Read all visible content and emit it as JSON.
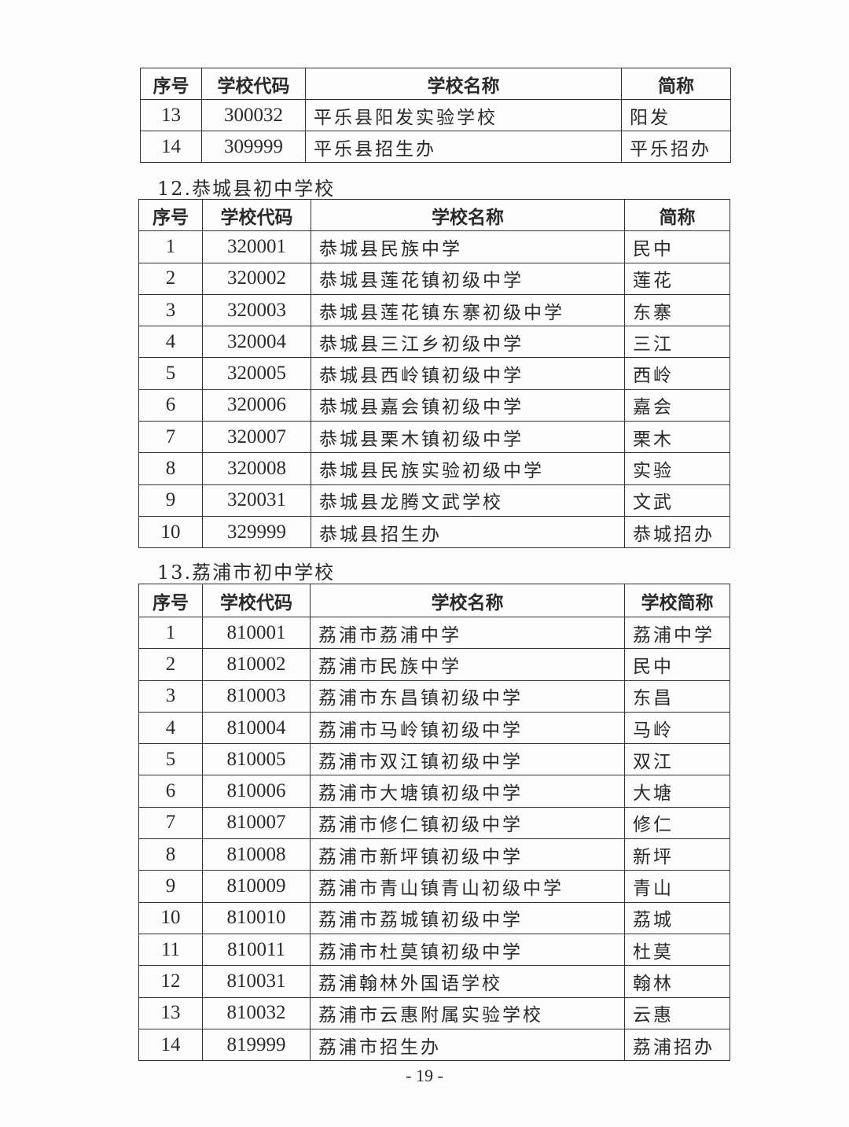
{
  "tables": [
    {
      "headers": [
        "序号",
        "学校代码",
        "学校名称",
        "简称"
      ],
      "rows": [
        [
          "13",
          "300032",
          "平乐县阳发实验学校",
          "阳发"
        ],
        [
          "14",
          "309999",
          "平乐县招生办",
          "平乐招办"
        ]
      ]
    },
    {
      "heading": "12.恭城县初中学校",
      "headers": [
        "序号",
        "学校代码",
        "学校名称",
        "简称"
      ],
      "rows": [
        [
          "1",
          "320001",
          "恭城县民族中学",
          "民中"
        ],
        [
          "2",
          "320002",
          "恭城县莲花镇初级中学",
          "莲花"
        ],
        [
          "3",
          "320003",
          "恭城县莲花镇东寨初级中学",
          "东寨"
        ],
        [
          "4",
          "320004",
          "恭城县三江乡初级中学",
          "三江"
        ],
        [
          "5",
          "320005",
          "恭城县西岭镇初级中学",
          "西岭"
        ],
        [
          "6",
          "320006",
          "恭城县嘉会镇初级中学",
          "嘉会"
        ],
        [
          "7",
          "320007",
          "恭城县栗木镇初级中学",
          "栗木"
        ],
        [
          "8",
          "320008",
          "恭城县民族实验初级中学",
          "实验"
        ],
        [
          "9",
          "320031",
          "恭城县龙腾文武学校",
          "文武"
        ],
        [
          "10",
          "329999",
          "恭城县招生办",
          "恭城招办"
        ]
      ]
    },
    {
      "heading": "13.荔浦市初中学校",
      "headers": [
        "序号",
        "学校代码",
        "学校名称",
        "学校简称"
      ],
      "rows": [
        [
          "1",
          "810001",
          "荔浦市荔浦中学",
          "荔浦中学"
        ],
        [
          "2",
          "810002",
          "荔浦市民族中学",
          "民中"
        ],
        [
          "3",
          "810003",
          "荔浦市东昌镇初级中学",
          "东昌"
        ],
        [
          "4",
          "810004",
          "荔浦市马岭镇初级中学",
          "马岭"
        ],
        [
          "5",
          "810005",
          "荔浦市双江镇初级中学",
          "双江"
        ],
        [
          "6",
          "810006",
          "荔浦市大塘镇初级中学",
          "大塘"
        ],
        [
          "7",
          "810007",
          "荔浦市修仁镇初级中学",
          "修仁"
        ],
        [
          "8",
          "810008",
          "荔浦市新坪镇初级中学",
          "新坪"
        ],
        [
          "9",
          "810009",
          "荔浦市青山镇青山初级中学",
          "青山"
        ],
        [
          "10",
          "810010",
          "荔浦市荔城镇初级中学",
          "荔城"
        ],
        [
          "11",
          "810011",
          "荔浦市杜莫镇初级中学",
          "杜莫"
        ],
        [
          "12",
          "810031",
          "荔浦翰林外国语学校",
          "翰林"
        ],
        [
          "13",
          "810032",
          "荔浦市云惠附属实验学校",
          "云惠"
        ],
        [
          "14",
          "819999",
          "荔浦市招生办",
          "荔浦招办"
        ]
      ]
    }
  ],
  "page_number": "- 19 -"
}
